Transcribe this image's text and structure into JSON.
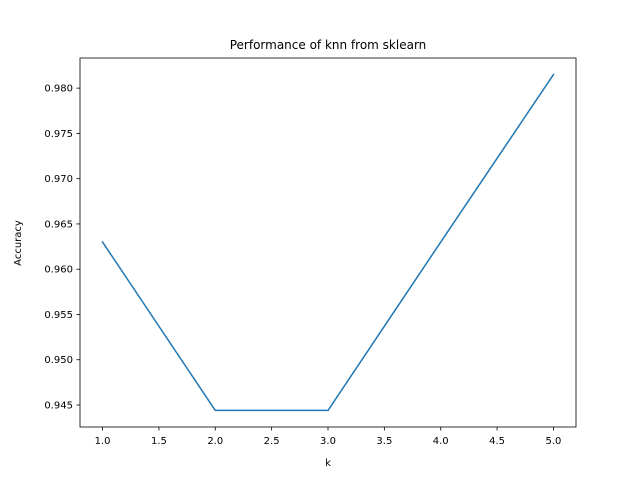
{
  "chart_data": {
    "type": "line",
    "title": "Performance of knn from sklearn",
    "xlabel": "k",
    "ylabel": "Accuracy",
    "x": [
      1,
      2,
      3,
      4,
      5
    ],
    "series": [
      {
        "values": [
          0.963,
          0.9444,
          0.9444,
          0.963,
          0.9815
        ],
        "color": "#1f77b4"
      }
    ],
    "xlim": [
      0.8,
      5.2
    ],
    "ylim": [
      0.94257,
      0.98333
    ],
    "x_ticks": [
      1.0,
      1.5,
      2.0,
      2.5,
      3.0,
      3.5,
      4.0,
      4.5,
      5.0
    ],
    "x_tick_labels": [
      "1.0",
      "1.5",
      "2.0",
      "2.5",
      "3.0",
      "3.5",
      "4.0",
      "4.5",
      "5.0"
    ],
    "y_ticks": [
      0.945,
      0.95,
      0.955,
      0.96,
      0.965,
      0.97,
      0.975,
      0.98
    ],
    "y_tick_labels": [
      "0.945",
      "0.950",
      "0.955",
      "0.960",
      "0.965",
      "0.970",
      "0.975",
      "0.980"
    ],
    "grid": false,
    "legend": false
  }
}
